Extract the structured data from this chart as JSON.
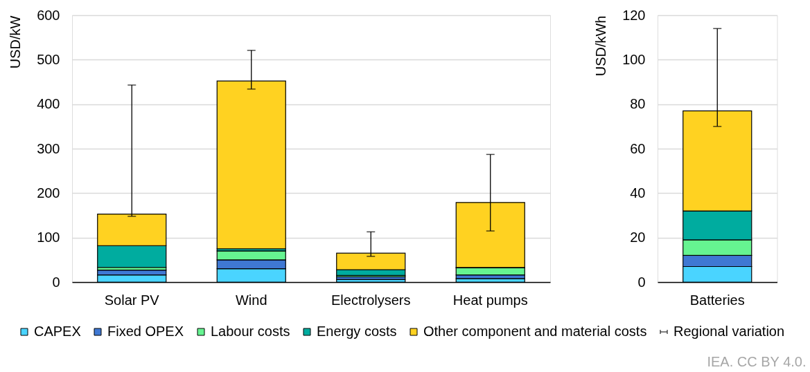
{
  "chart_data": [
    {
      "type": "bar",
      "stacked": true,
      "categories": [
        "Solar PV",
        "Wind",
        "Electrolysers",
        "Heat pumps"
      ],
      "ylabel": "USD/kW",
      "ylim": [
        0,
        600
      ],
      "yticks": [
        0,
        100,
        200,
        300,
        400,
        500,
        600
      ],
      "grid": "y",
      "legend": "bottom",
      "series": [
        {
          "name": "CAPEX",
          "color": "#4ad4ff",
          "values": [
            16,
            30,
            6,
            8
          ]
        },
        {
          "name": "Fixed OPEX",
          "color": "#3f78d3",
          "values": [
            11,
            20,
            6,
            8
          ]
        },
        {
          "name": "Labour costs",
          "color": "#66f491",
          "values": [
            6,
            20,
            3,
            16
          ]
        },
        {
          "name": "Energy costs",
          "color": "#00ac9f",
          "values": [
            49,
            5,
            13,
            1
          ]
        },
        {
          "name": "Other component and material costs",
          "color": "#ffd221",
          "values": [
            71,
            377,
            37,
            146
          ],
          "errors": [
            [
              148,
              443
            ],
            [
              434,
              521
            ],
            [
              58,
              113
            ],
            [
              115,
              287
            ]
          ]
        },
        {
          "name": "Regional variation",
          "color": "#000000",
          "values": [
            null,
            null,
            null,
            null
          ]
        }
      ]
    },
    {
      "type": "bar",
      "stacked": true,
      "categories": [
        "Batteries"
      ],
      "ylabel": "USD/kWh",
      "ylim": [
        0,
        120
      ],
      "yticks": [
        0,
        20,
        40,
        60,
        80,
        100,
        120
      ],
      "grid": "y",
      "series": [
        {
          "color": "#4ad4ff",
          "values": [
            7
          ]
        },
        {
          "color": "#3f78d3",
          "values": [
            5
          ]
        },
        {
          "color": "#66f491",
          "values": [
            7
          ]
        },
        {
          "color": "#00ac9f",
          "values": [
            13
          ]
        },
        {
          "color": "#ffd221",
          "values": [
            45
          ],
          "errors": [
            [
              70,
              114
            ]
          ]
        }
      ],
      "annotations": [
        "IEA. CC BY 4.0."
      ]
    }
  ]
}
